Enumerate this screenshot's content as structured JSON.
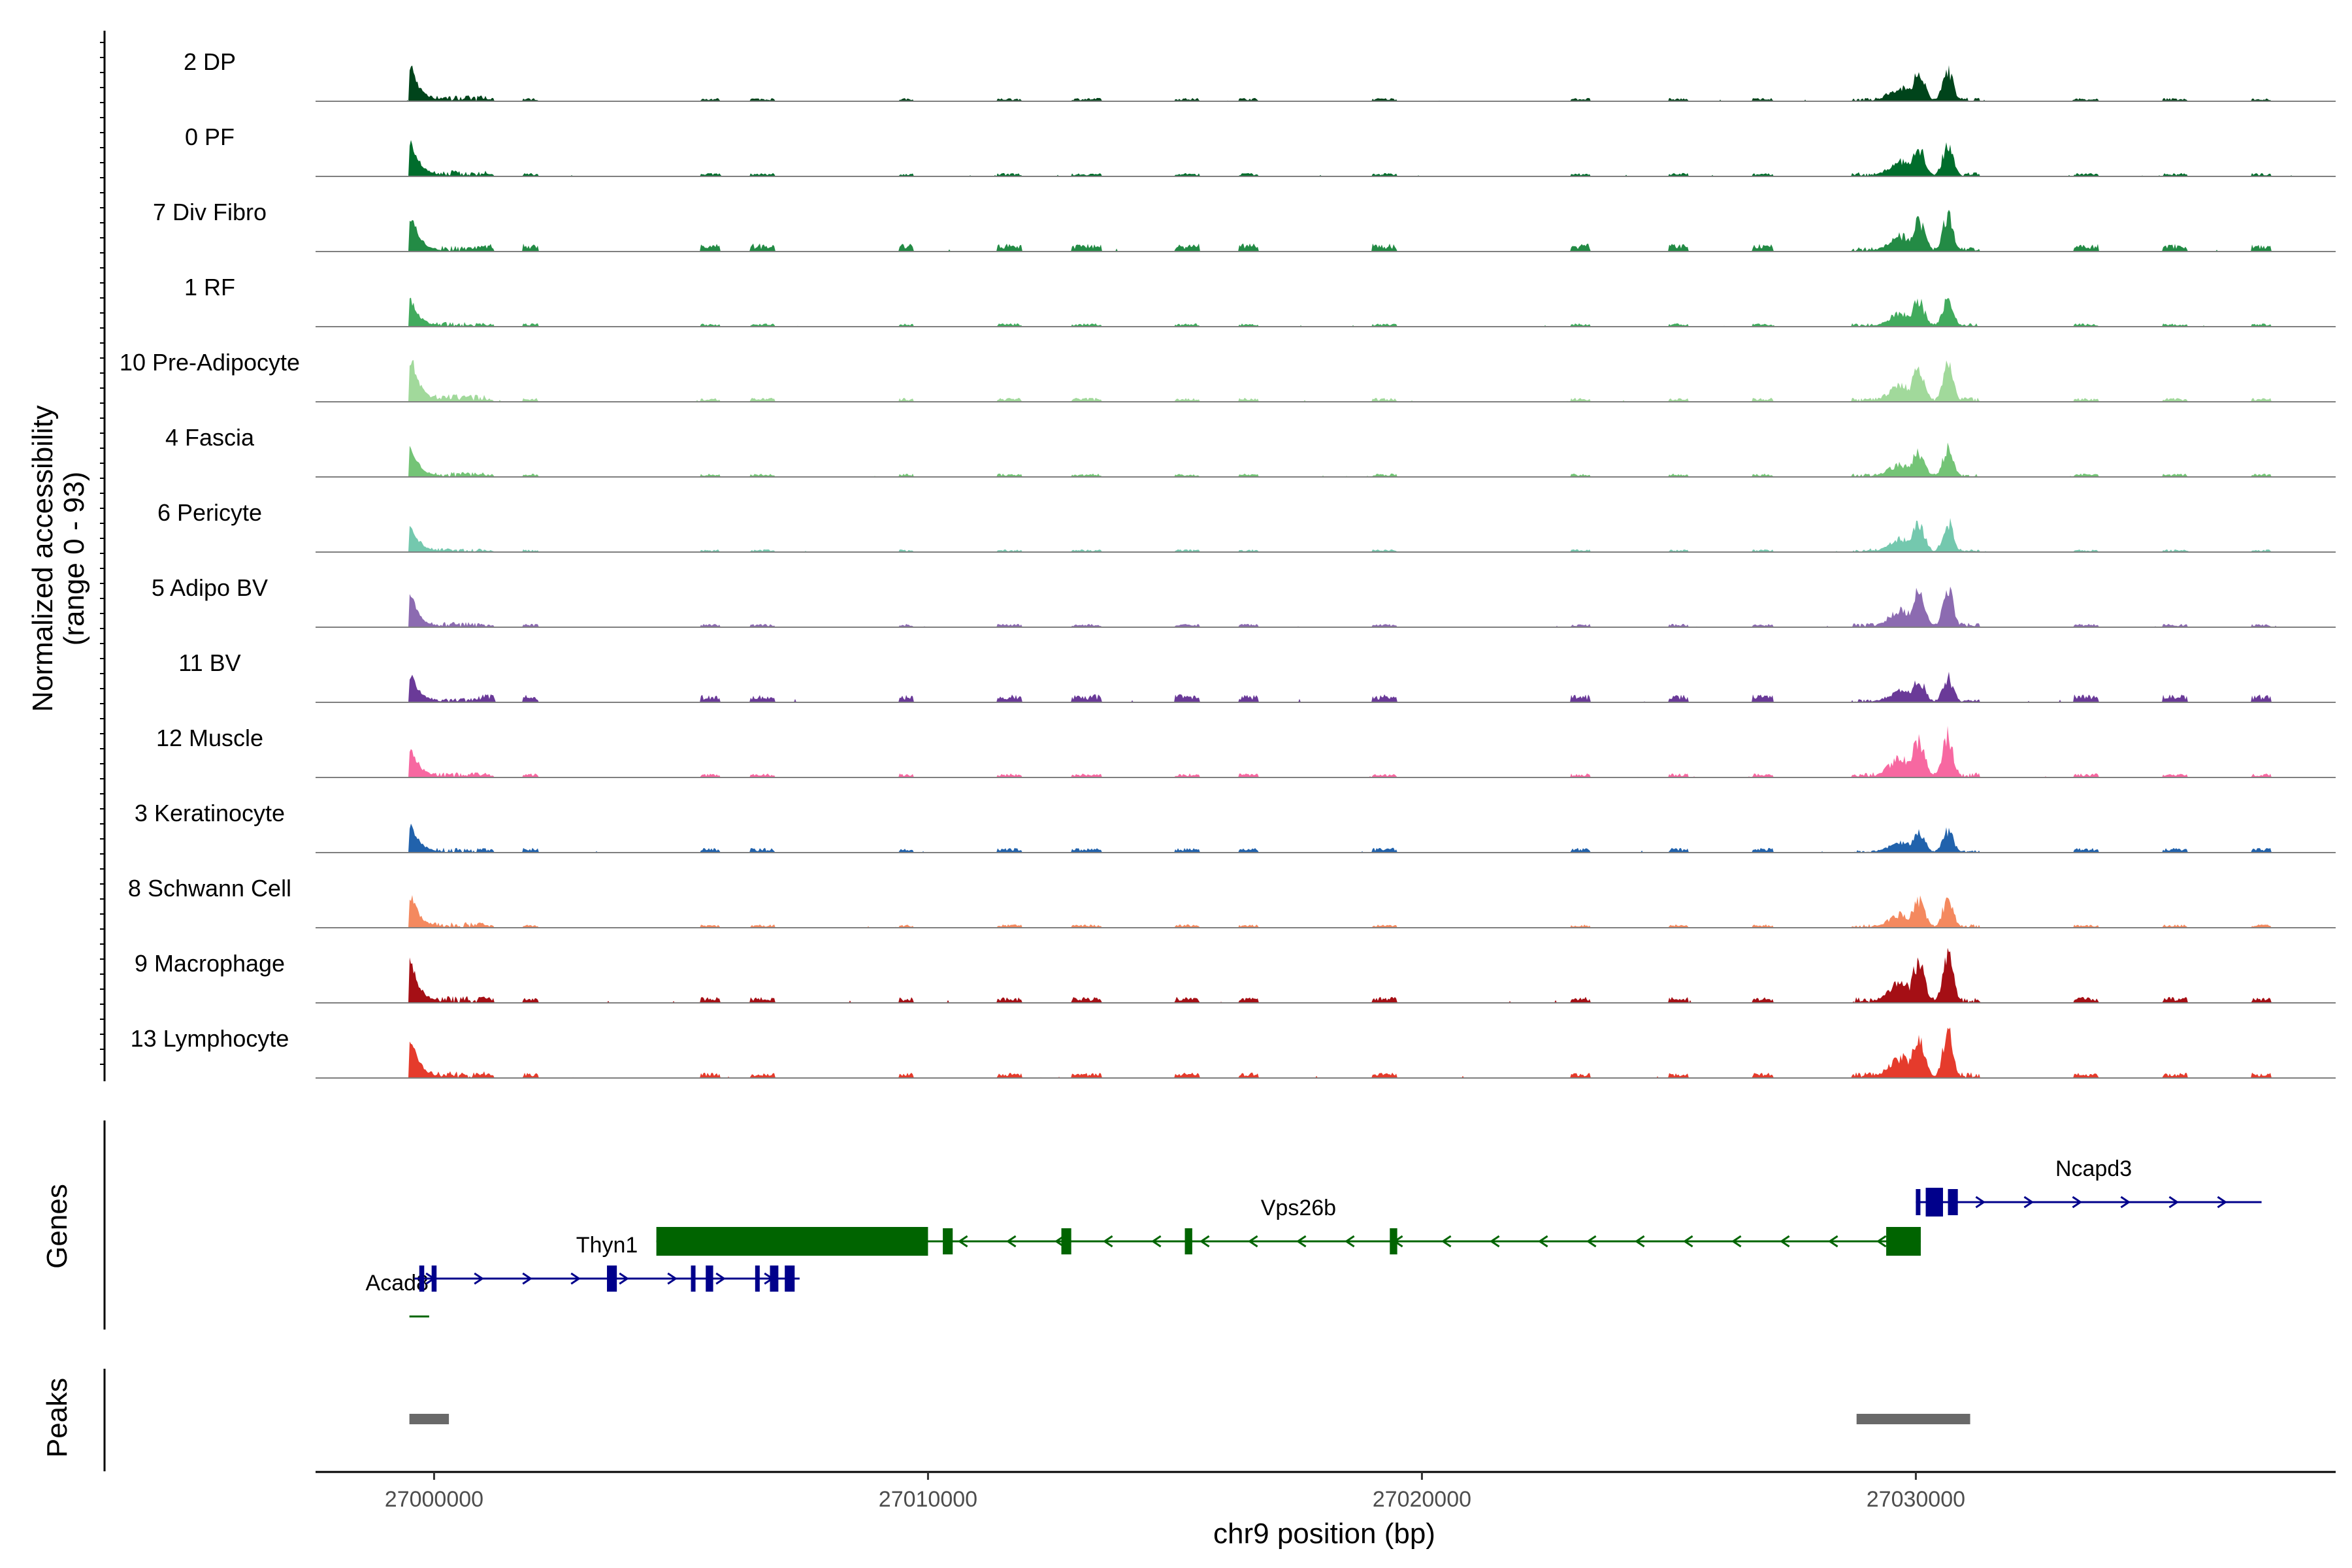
{
  "chart_data": {
    "type": "area",
    "xlabel": "chr9 position (bp)",
    "ylabel_line1": "Normalized accessibility",
    "ylabel_line2": "(range 0 - 93)",
    "xlim": [
      26997600,
      27038500
    ],
    "ylim": [
      0,
      93
    ],
    "x_ticks": [
      {
        "value": 27000000,
        "label": "27000000"
      },
      {
        "value": 27010000,
        "label": "27010000"
      },
      {
        "value": 27020000,
        "label": "27020000"
      },
      {
        "value": 27030000,
        "label": "27030000"
      }
    ],
    "tracks": [
      {
        "name": "2 DP",
        "color": "#00441b",
        "main": 93,
        "max": 0.6,
        "bg": 0.05,
        "peak": 0.58
      },
      {
        "name": "0 PF",
        "color": "#006d2c",
        "main": 93,
        "max": 0.62,
        "bg": 0.05,
        "peak": 0.62
      },
      {
        "name": "7 Div Fibro",
        "color": "#238b45",
        "main": 93,
        "max": 0.62,
        "bg": 0.12,
        "peak": 0.66
      },
      {
        "name": "1 RF",
        "color": "#41ab5d",
        "main": 93,
        "max": 0.46,
        "bg": 0.05,
        "peak": 0.54
      },
      {
        "name": "10 Pre-Adipocyte",
        "color": "#a1d99b",
        "main": 93,
        "max": 0.76,
        "bg": 0.06,
        "peak": 0.68
      },
      {
        "name": "4 Fascia",
        "color": "#74c476",
        "main": 93,
        "max": 0.5,
        "bg": 0.05,
        "peak": 0.52
      },
      {
        "name": "6 Pericyte",
        "color": "#74c8ae",
        "main": 93,
        "max": 0.46,
        "bg": 0.04,
        "peak": 0.56
      },
      {
        "name": "5 Adipo BV",
        "color": "#8c6bb1",
        "main": 93,
        "max": 0.52,
        "bg": 0.05,
        "peak": 0.7
      },
      {
        "name": "11 BV",
        "color": "#6a3a98",
        "main": 93,
        "max": 0.48,
        "bg": 0.12,
        "peak": 0.48
      },
      {
        "name": "12 Muscle",
        "color": "#f768a1",
        "main": 93,
        "max": 0.52,
        "bg": 0.06,
        "peak": 0.8
      },
      {
        "name": "3 Keratinocyte",
        "color": "#2162ac",
        "main": 93,
        "max": 0.5,
        "bg": 0.07,
        "peak": 0.42
      },
      {
        "name": "8 Schwann Cell",
        "color": "#f4895f",
        "main": 93,
        "max": 0.56,
        "bg": 0.05,
        "peak": 0.56
      },
      {
        "name": "9 Macrophage",
        "color": "#a50f15",
        "main": 93,
        "max": 0.68,
        "bg": 0.09,
        "peak": 0.86
      },
      {
        "name": "13 Lymphocyte",
        "color": "#e53b2c",
        "main": 93,
        "max": 0.68,
        "bg": 0.08,
        "peak": 0.86
      }
    ],
    "genes_label": "Genes",
    "peaks_label": "Peaks",
    "genes": [
      {
        "name": "Acad8",
        "strand": "-",
        "start": 26999500,
        "end": 26999900,
        "color": "#006400",
        "row": 2,
        "exons": [],
        "label_x": 26999250
      },
      {
        "name": "Thyn1",
        "strand": "+",
        "start": 26999600,
        "end": 27007400,
        "color": "#00008b",
        "row": 1,
        "exons": [
          [
            26999700,
            26999800
          ],
          [
            26999950,
            27000050
          ],
          [
            27003500,
            27003700
          ],
          [
            27005200,
            27005280
          ],
          [
            27005500,
            27005650
          ],
          [
            27006500,
            27006580
          ],
          [
            27006800,
            27006970
          ],
          [
            27007100,
            27007300
          ]
        ],
        "label_x": 27003500
      },
      {
        "name": "Vps26b",
        "strand": "-",
        "start": 27004500,
        "end": 27030100,
        "color": "#006400",
        "row": 0,
        "exons": [
          [
            27004500,
            27010000
          ],
          [
            27010300,
            27010500
          ],
          [
            27012700,
            27012900
          ],
          [
            27015200,
            27015350
          ],
          [
            27019350,
            27019500
          ],
          [
            27029400,
            27030100
          ]
        ],
        "label_x": 27017500
      },
      {
        "name": "Ncapd3",
        "strand": "+",
        "start": 27030000,
        "end": 27037000,
        "color": "#00008b",
        "row": -1,
        "exons": [
          [
            27030000,
            27030050
          ],
          [
            27030200,
            27030550
          ],
          [
            27030650,
            27030850
          ]
        ],
        "label_x": 27033600
      }
    ],
    "peaks": [
      {
        "start": 26999500,
        "end": 27000300
      },
      {
        "start": 27028800,
        "end": 27031100
      }
    ]
  }
}
